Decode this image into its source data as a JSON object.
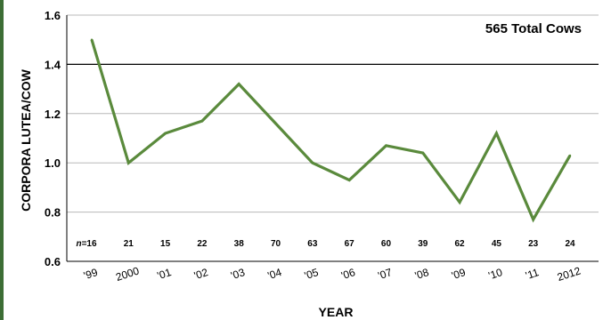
{
  "chart_data": {
    "type": "line",
    "title": "",
    "xlabel": "YEAR",
    "ylabel": "CORPORA LUTEA/COW",
    "ylim": [
      0.6,
      1.6
    ],
    "yticks": [
      "0.6",
      "0.8",
      "1.0",
      "1.2",
      "1.4",
      "1.6"
    ],
    "reference_line": 1.4,
    "grid": true,
    "annotation": "565 Total Cows",
    "n_prefix": "n=",
    "categories": [
      "'99",
      "2000",
      "'01",
      "'02",
      "'03",
      "'04",
      "'05",
      "'06",
      "'07",
      "'08",
      "'09",
      "'10",
      "'11",
      "2012"
    ],
    "values": [
      1.5,
      1.0,
      1.12,
      1.17,
      1.32,
      1.16,
      1.0,
      0.93,
      1.07,
      1.04,
      0.84,
      1.12,
      0.77,
      1.03
    ],
    "counts": [
      "16",
      "21",
      "15",
      "22",
      "38",
      "70",
      "63",
      "67",
      "60",
      "39",
      "62",
      "45",
      "23",
      "24"
    ],
    "colors": {
      "line": "#5a8a3c",
      "band": "#3d6e35",
      "grid": "#b8b8b8",
      "ref": "#000000"
    }
  }
}
